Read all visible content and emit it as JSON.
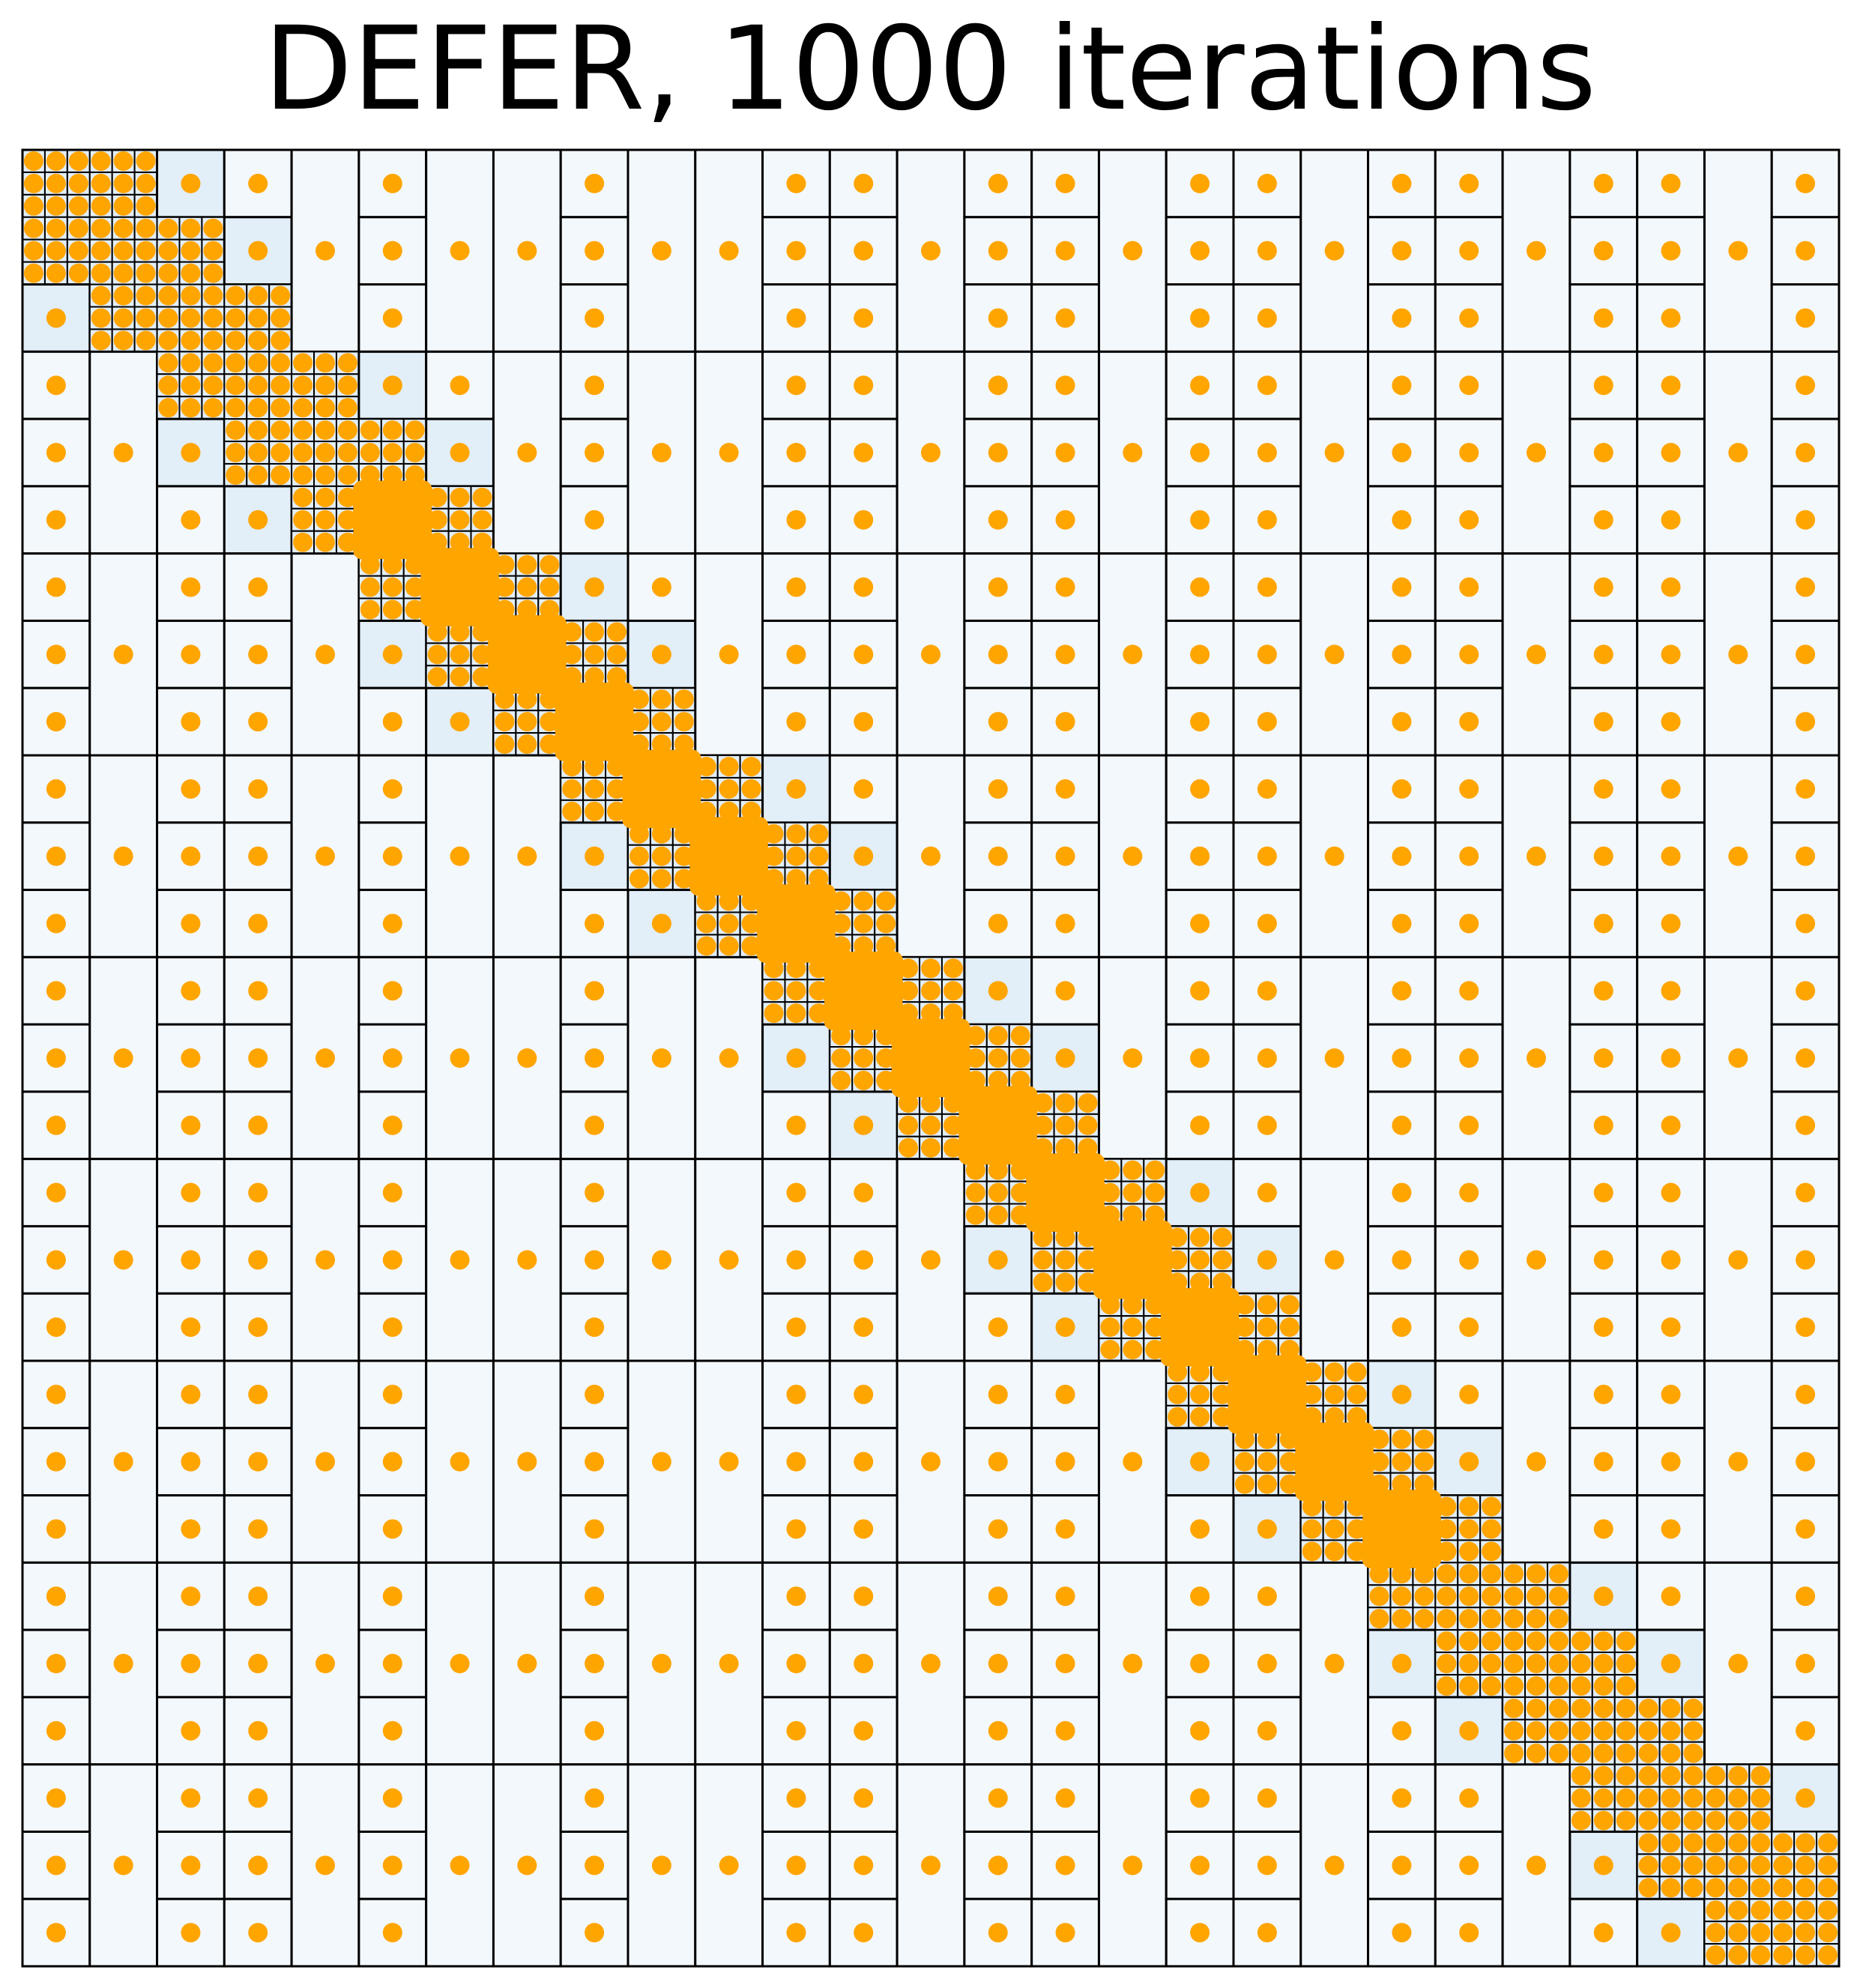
{
  "title": "DEFER, 1000 iterations",
  "colors": {
    "background": "#ffffff",
    "cell_fill_light": "#f3f8fd",
    "cell_fill_mid": "#e2eef8",
    "cell_fill_strong": "#8ebfdd",
    "cell_border": "#000000",
    "point": "#ffa500"
  },
  "chart_data": {
    "type": "partition-diagram",
    "xlim": [
      0,
      27
    ],
    "ylim": [
      0,
      27
    ],
    "diagonal_band": "top-left to bottom-right",
    "highlighted_cell": {
      "col": 11,
      "row": 12
    }
  }
}
